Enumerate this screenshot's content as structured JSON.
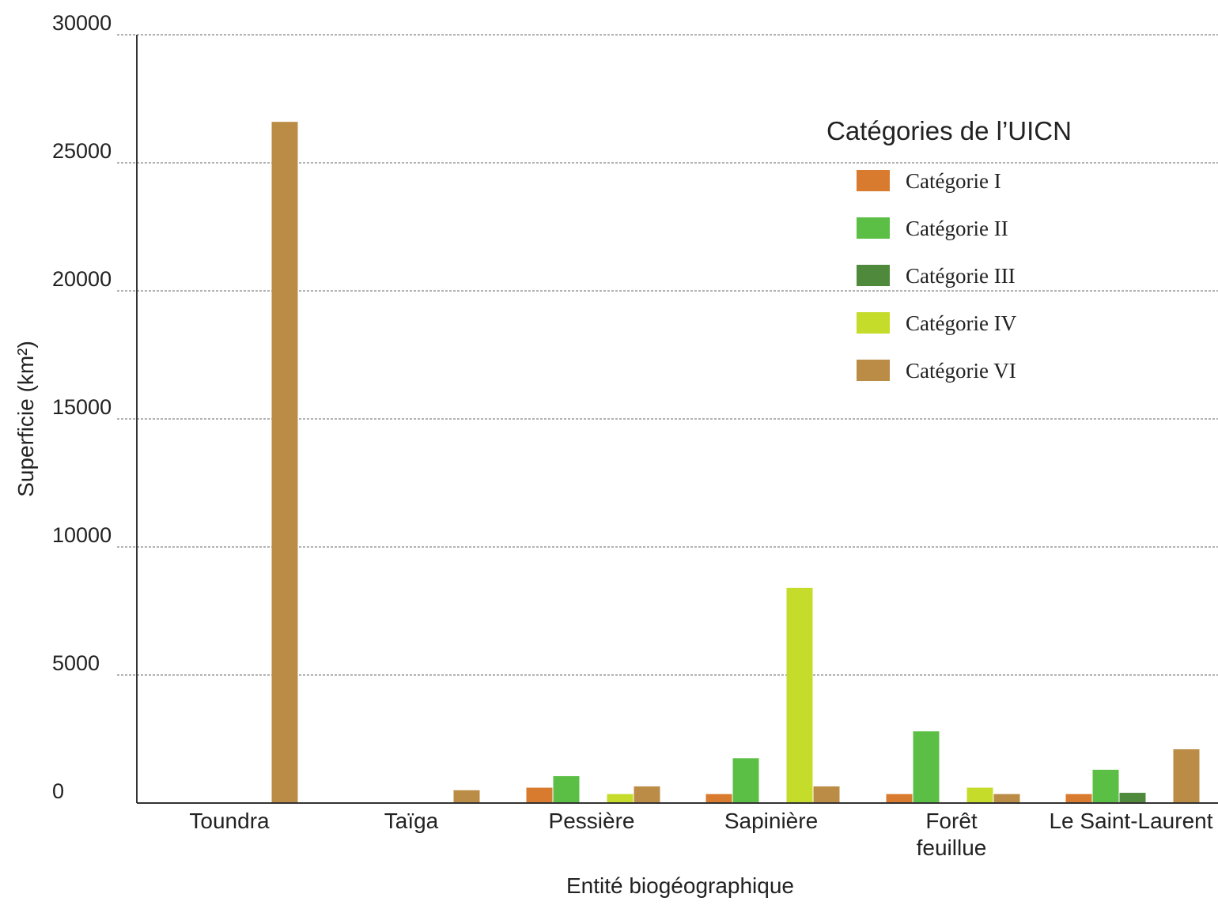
{
  "chart_data": {
    "type": "bar",
    "title": "",
    "xlabel": "Entité biogéographique",
    "ylabel": "Superficie (km²)",
    "ylim": [
      0,
      30000
    ],
    "yticks": [
      0,
      5000,
      10000,
      15000,
      20000,
      25000,
      30000
    ],
    "grid": true,
    "categories": [
      "Toundra",
      "Taïga",
      "Pessière",
      "Sapinière",
      "Forêt feuillue",
      "Le Saint-Laurent"
    ],
    "category_label_lines": [
      [
        "Toundra"
      ],
      [
        "Taïga"
      ],
      [
        "Pessière"
      ],
      [
        "Sapinière"
      ],
      [
        "Forêt",
        "feuillue"
      ],
      [
        "Le Saint-Laurent"
      ]
    ],
    "legend": {
      "title": "Catégories de l’UICN",
      "position": "top-right"
    },
    "series": [
      {
        "name": "Catégorie I",
        "color": "#d97b2e",
        "values": [
          0,
          0,
          600,
          350,
          350,
          350
        ]
      },
      {
        "name": "Catégorie II",
        "color": "#5cbf45",
        "values": [
          0,
          0,
          1050,
          1750,
          2800,
          1300
        ]
      },
      {
        "name": "Catégorie III",
        "color": "#4f8a3c",
        "values": [
          0,
          0,
          0,
          0,
          0,
          400
        ]
      },
      {
        "name": "Catégorie IV",
        "color": "#c5dc2a",
        "values": [
          0,
          0,
          350,
          8400,
          600,
          0
        ]
      },
      {
        "name": "Catégorie VI",
        "color": "#bb8c45",
        "values": [
          26600,
          500,
          650,
          650,
          350,
          2100
        ]
      }
    ]
  }
}
